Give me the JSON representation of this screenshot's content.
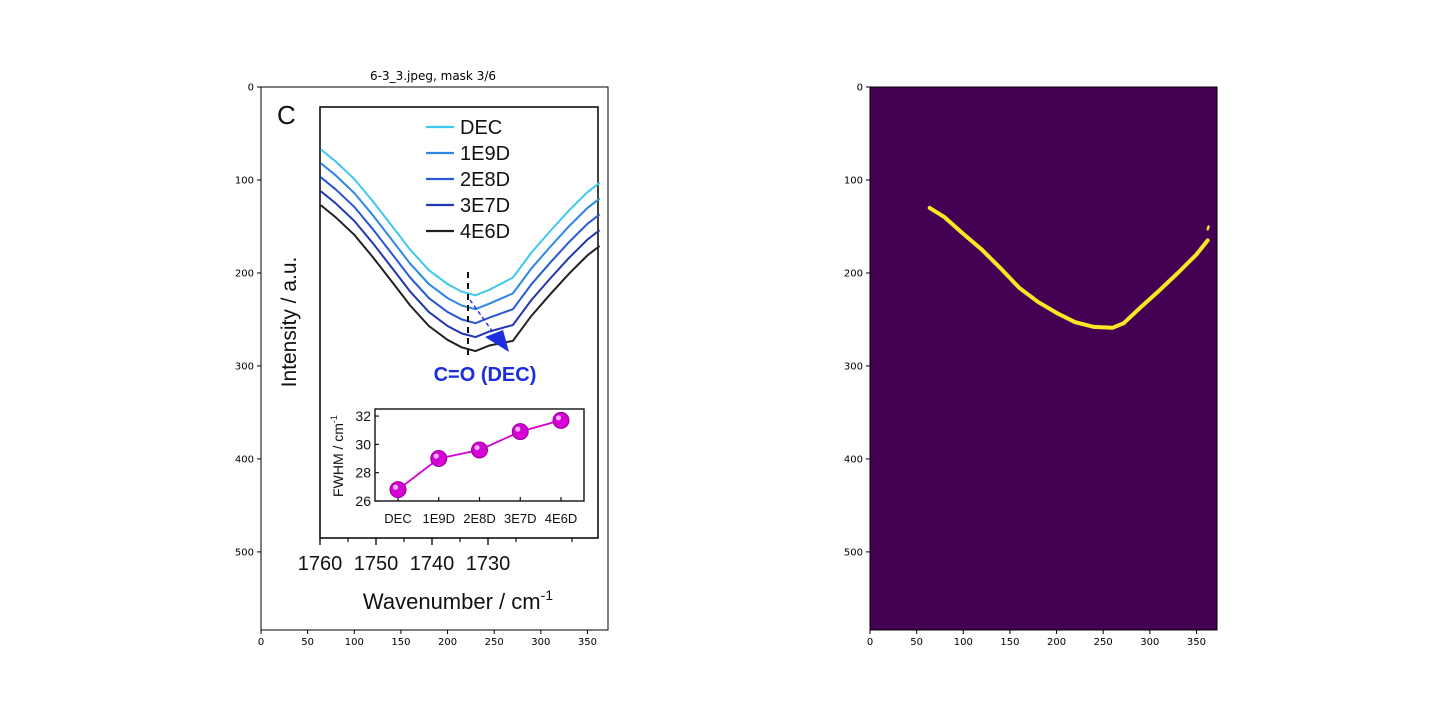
{
  "chart_data": [
    {
      "type": "image",
      "title": "6-3_3.jpeg, mask 3/6",
      "xlim": [
        0,
        372
      ],
      "ylim": [
        584,
        0
      ],
      "xticks": [
        0,
        50,
        100,
        150,
        200,
        250,
        300,
        350
      ],
      "yticks": [
        0,
        100,
        200,
        300,
        400,
        500
      ],
      "embedded_figure": {
        "panel_letter": "C",
        "type": "line",
        "xlabel": "Wavenumber / cm",
        "xlabel_sup": "-1",
        "ylabel": "Intensity / a.u.",
        "xticks": [
          "1760",
          "1750",
          "1740",
          "1730"
        ],
        "annotation": "C=O (DEC)",
        "legend": [
          "DEC",
          "1E9D",
          "2E8D",
          "3E7D",
          "4E6D"
        ],
        "series_colors": [
          "#3ec8ee",
          "#2f86e6",
          "#2a57d8",
          "#2236b4",
          "#222222"
        ],
        "inset": {
          "type": "line",
          "ylabel": "FWHM / cm",
          "ylabel_sup": "-1",
          "categories": [
            "DEC",
            "1E9D",
            "2E8D",
            "3E7D",
            "4E6D"
          ],
          "values": [
            26.8,
            29.0,
            29.6,
            30.9,
            31.7
          ],
          "yticks": [
            "26",
            "28",
            "30",
            "32"
          ],
          "ylim": [
            26,
            32.5
          ],
          "color": "#d400d4"
        }
      }
    },
    {
      "type": "image",
      "title": "",
      "xlim": [
        0,
        372
      ],
      "ylim": [
        584,
        0
      ],
      "xticks": [
        0,
        50,
        100,
        150,
        200,
        250,
        300,
        350
      ],
      "yticks": [
        0,
        100,
        200,
        300,
        400,
        500
      ],
      "background_color": "#440154",
      "mask_color": "#fde725"
    }
  ]
}
